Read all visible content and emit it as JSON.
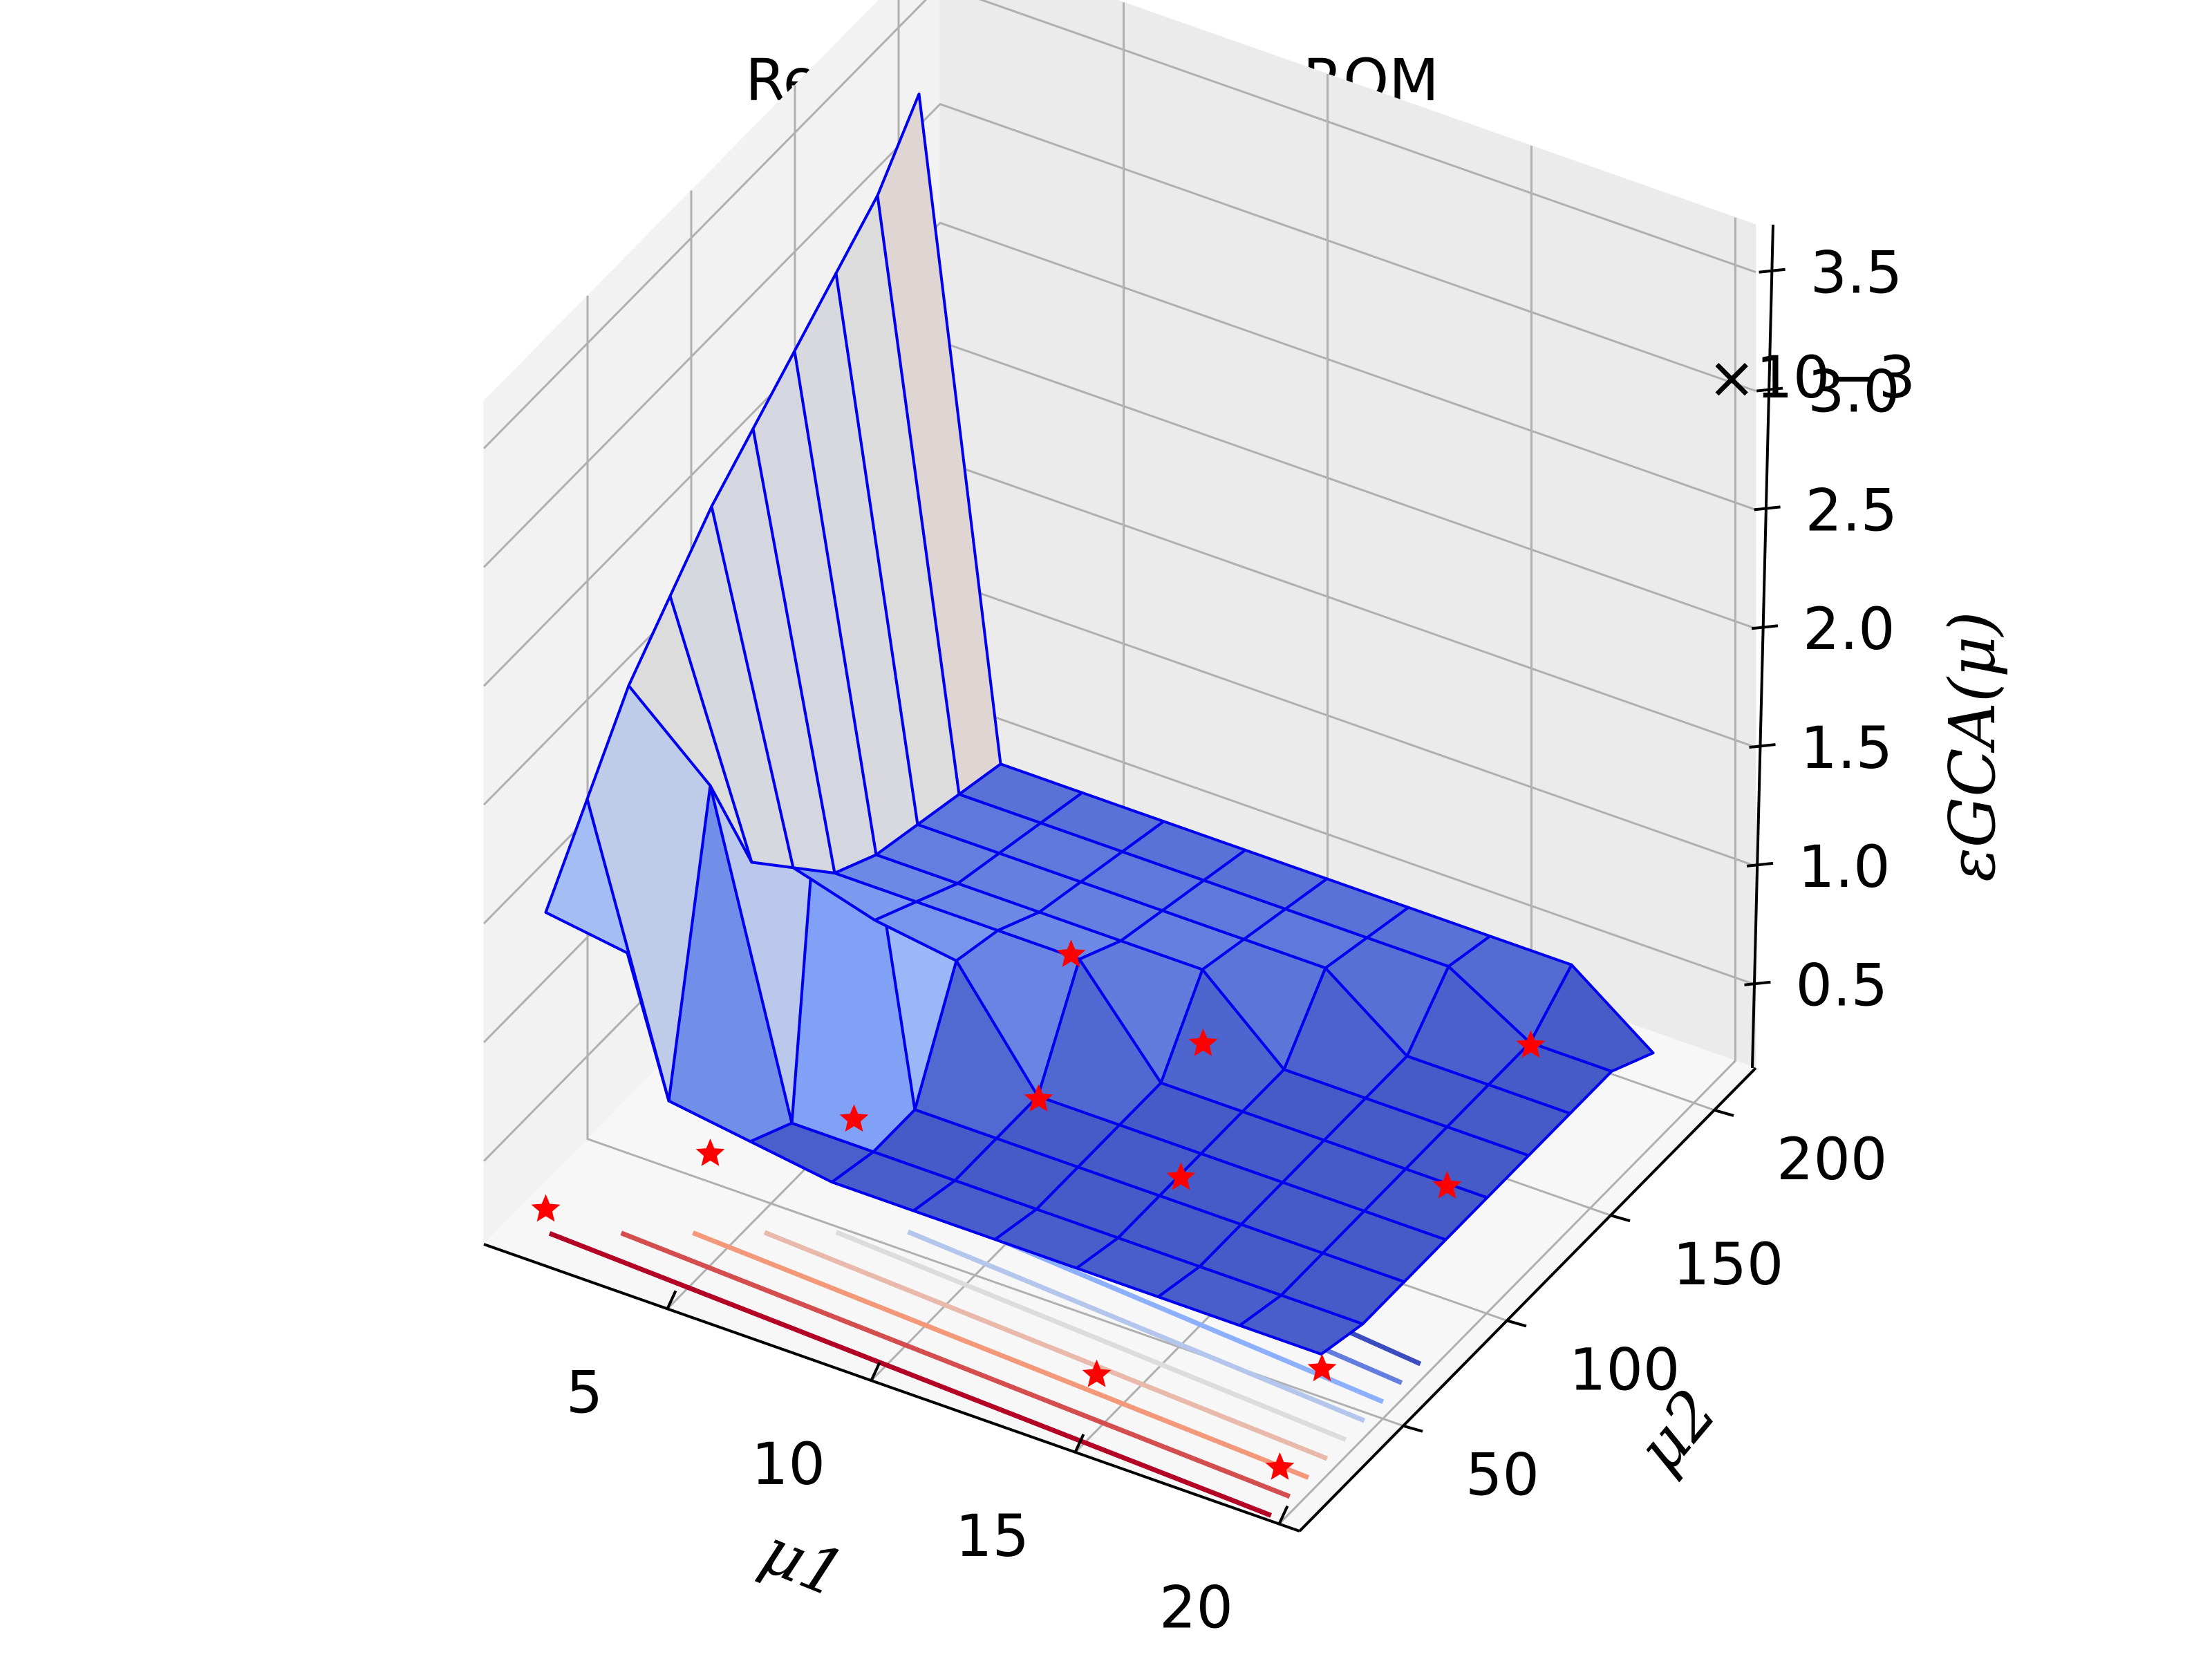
{
  "chart_data": {
    "type": "surface3d",
    "title": "Relative Error GCA-ROM",
    "xlabel": "μ1",
    "ylabel": "μ2",
    "zlabel": "εGCA(μ)",
    "z_offset_text": "×10−3",
    "x_ticks": [
      "5",
      "10",
      "15",
      "20"
    ],
    "y_ticks": [
      "50",
      "100",
      "150",
      "200"
    ],
    "z_ticks": [
      "0.5",
      "1.0",
      "1.5",
      "2.0",
      "2.5",
      "3.0",
      "3.5"
    ],
    "xlim": [
      0.5,
      20.5
    ],
    "ylim": [
      0,
      220
    ],
    "zlim": [
      0.15,
      3.7
    ],
    "z_scale": 0.001,
    "colormap": "coolwarm",
    "edge_color": "#0000ee",
    "marker_color": "#ff0000",
    "x": [
      1,
      3,
      5,
      7,
      9,
      11,
      13,
      15,
      17,
      19
    ],
    "y": [
      20,
      40,
      60,
      80,
      100,
      120,
      140,
      160,
      180,
      200
    ],
    "z": [
      [
        1.4,
        1.7,
        2.0,
        2.2,
        2.4,
        2.55,
        2.7,
        2.85,
        3.0,
        3.25
      ],
      [
        1.35,
        0.55,
        1.7,
        1.2,
        1.0,
        0.8,
        0.7,
        0.65,
        0.6,
        0.55
      ],
      [
        1.3,
        0.5,
        0.4,
        2.5,
        0.9,
        0.8,
        0.7,
        0.65,
        0.6,
        0.55
      ],
      [
        1.25,
        0.45,
        0.4,
        0.4,
        0.85,
        0.8,
        0.7,
        0.65,
        0.6,
        0.55
      ],
      [
        1.2,
        0.45,
        0.4,
        0.4,
        0.4,
        0.8,
        0.7,
        0.65,
        0.6,
        0.55
      ],
      [
        1.15,
        0.45,
        0.4,
        0.4,
        0.4,
        0.4,
        0.7,
        0.65,
        0.6,
        0.55
      ],
      [
        1.1,
        0.45,
        0.4,
        0.4,
        0.4,
        0.4,
        0.4,
        0.65,
        0.6,
        0.55
      ],
      [
        1.05,
        0.45,
        0.4,
        0.4,
        0.4,
        0.4,
        0.4,
        0.4,
        0.6,
        0.55
      ],
      [
        1.0,
        0.45,
        0.4,
        0.4,
        0.4,
        0.4,
        0.4,
        0.4,
        0.4,
        0.55
      ],
      [
        0.95,
        0.45,
        0.4,
        0.4,
        0.4,
        0.4,
        0.4,
        0.4,
        0.4,
        0.3
      ]
    ],
    "samples": [
      [
        1,
        20
      ],
      [
        3,
        60
      ],
      [
        5,
        90
      ],
      [
        8,
        120
      ],
      [
        10,
        160
      ],
      [
        14,
        30
      ],
      [
        16,
        200
      ],
      [
        12,
        110
      ],
      [
        18,
        60
      ],
      [
        19,
        20
      ],
      [
        17,
        140
      ],
      [
        6,
        175
      ]
    ]
  }
}
